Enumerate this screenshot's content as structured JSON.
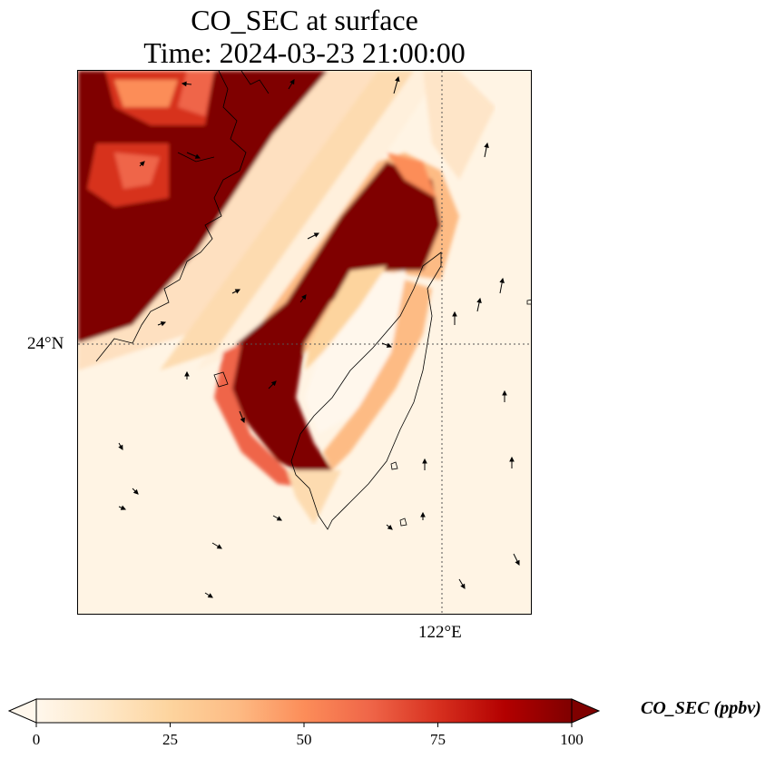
{
  "title": {
    "line1": "CO_SEC at surface",
    "line2": "Time: 2024-03-23 21:00:00"
  },
  "map": {
    "lat_tick_label": "24°N",
    "lon_tick_label": "122°E",
    "field_variable": "CO_SEC",
    "features": [
      "concentration-field",
      "coastline",
      "gridlines",
      "wind-vectors"
    ]
  },
  "colorbar": {
    "label": "CO_SEC (ppbv)",
    "min": 0,
    "max": 100,
    "ticks": [
      "0",
      "25",
      "50",
      "75",
      "100"
    ],
    "extend": "both",
    "colormap": "OrRd",
    "stops": [
      "#fff7ec",
      "#fee8c8",
      "#fdd49e",
      "#fdbb84",
      "#fc8d59",
      "#ef6548",
      "#d7301f",
      "#b30000",
      "#7f0000"
    ]
  }
}
